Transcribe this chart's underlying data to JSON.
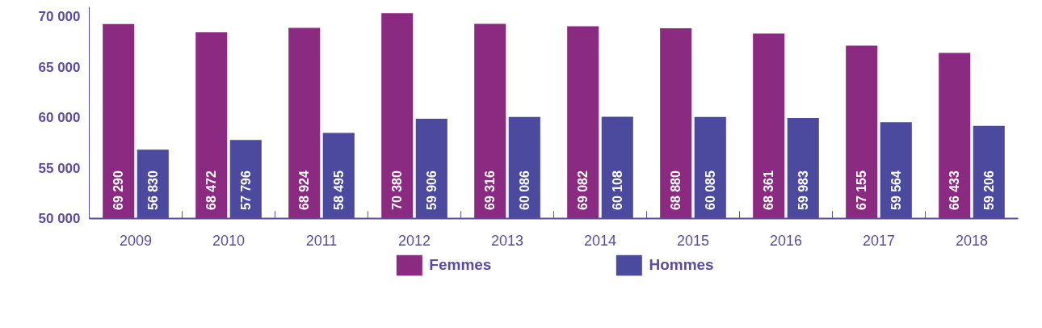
{
  "chart_data": {
    "type": "bar",
    "categories": [
      "2009",
      "2010",
      "2011",
      "2012",
      "2013",
      "2014",
      "2015",
      "2016",
      "2017",
      "2018"
    ],
    "ylim": [
      50000,
      71000
    ],
    "yticks": [
      {
        "value": 50000,
        "label": "50 000"
      },
      {
        "value": 55000,
        "label": "55 000"
      },
      {
        "value": 60000,
        "label": "60 000"
      },
      {
        "value": 65000,
        "label": "65 000"
      },
      {
        "value": 70000,
        "label": "70 000"
      }
    ],
    "grid": false,
    "legend": "bottom",
    "series": [
      {
        "name": "Femmes",
        "color": "#8a2a80",
        "values": [
          69290,
          68472,
          68924,
          70380,
          69316,
          69082,
          68880,
          68361,
          67155,
          66433
        ],
        "value_labels": [
          "69 290",
          "68 472",
          "68 924",
          "70 380",
          "69 316",
          "69 082",
          "68 880",
          "68 361",
          "67 155",
          "66 433"
        ]
      },
      {
        "name": "Hommes",
        "color": "#4b4a9f",
        "values": [
          56830,
          57796,
          58495,
          59906,
          60086,
          60108,
          60085,
          59983,
          59564,
          59206
        ],
        "value_labels": [
          "56 830",
          "57 796",
          "58 495",
          "59 906",
          "60 086",
          "60 108",
          "60 085",
          "59 983",
          "59 564",
          "59 206"
        ]
      }
    ]
  }
}
